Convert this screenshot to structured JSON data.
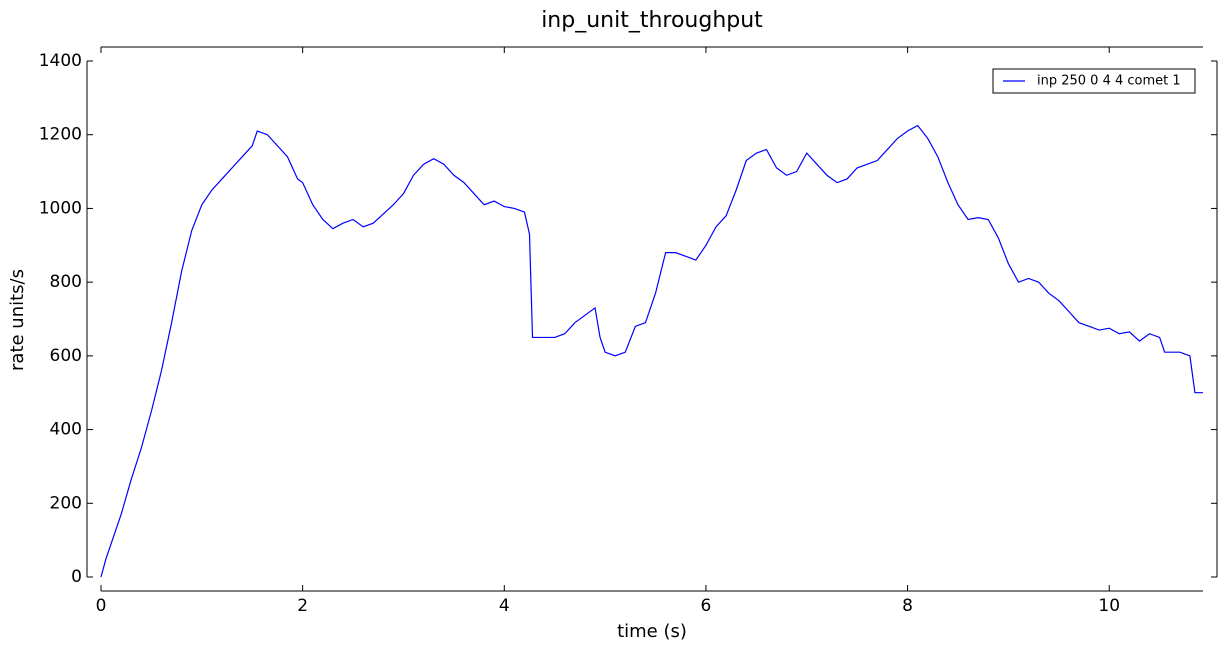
{
  "chart_data": {
    "type": "line",
    "title": "inp_unit_throughput",
    "xlabel": "time (s)",
    "ylabel": "rate units/s",
    "legend": "upper right",
    "xlim": [
      0,
      10.93
    ],
    "xticks": [
      0,
      2,
      4,
      6,
      8,
      10
    ],
    "ylim": [
      0,
      1400
    ],
    "yticks": [
      0,
      200,
      400,
      600,
      800,
      1000,
      1200,
      1400
    ],
    "x": [
      0,
      0.05,
      0.1,
      0.2,
      0.3,
      0.4,
      0.5,
      0.6,
      0.7,
      0.8,
      0.9,
      1.0,
      1.1,
      1.2,
      1.3,
      1.4,
      1.5,
      1.55,
      1.65,
      1.75,
      1.85,
      1.95,
      2.0,
      2.1,
      2.2,
      2.3,
      2.4,
      2.5,
      2.6,
      2.7,
      2.8,
      2.9,
      3.0,
      3.1,
      3.2,
      3.3,
      3.4,
      3.5,
      3.6,
      3.7,
      3.8,
      3.9,
      4.0,
      4.1,
      4.2,
      4.25,
      4.28,
      4.5,
      4.6,
      4.7,
      4.8,
      4.9,
      4.95,
      5.0,
      5.1,
      5.2,
      5.3,
      5.4,
      5.5,
      5.6,
      5.7,
      5.8,
      5.9,
      6.0,
      6.1,
      6.2,
      6.3,
      6.4,
      6.5,
      6.6,
      6.7,
      6.8,
      6.9,
      7.0,
      7.1,
      7.2,
      7.3,
      7.4,
      7.5,
      7.6,
      7.7,
      7.8,
      7.9,
      8.0,
      8.1,
      8.2,
      8.3,
      8.4,
      8.5,
      8.6,
      8.7,
      8.8,
      8.9,
      9.0,
      9.1,
      9.2,
      9.3,
      9.4,
      9.5,
      9.6,
      9.7,
      9.8,
      9.9,
      10.0,
      10.1,
      10.2,
      10.3,
      10.4,
      10.5,
      10.55,
      10.7,
      10.8,
      10.85,
      10.93
    ],
    "series": [
      {
        "name": "inp 250 0 4 4 comet 1",
        "color": "#0000ff",
        "values": [
          0,
          50,
          90,
          170,
          265,
          350,
          450,
          560,
          690,
          830,
          940,
          1010,
          1050,
          1080,
          1110,
          1140,
          1170,
          1210,
          1200,
          1170,
          1140,
          1080,
          1070,
          1010,
          970,
          945,
          960,
          970,
          950,
          960,
          985,
          1010,
          1040,
          1090,
          1120,
          1135,
          1120,
          1090,
          1070,
          1040,
          1010,
          1020,
          1005,
          1000,
          990,
          930,
          650,
          650,
          660,
          690,
          710,
          730,
          650,
          610,
          600,
          610,
          680,
          690,
          770,
          880,
          880,
          870,
          860,
          900,
          950,
          980,
          1050,
          1130,
          1150,
          1160,
          1110,
          1090,
          1100,
          1150,
          1120,
          1090,
          1070,
          1080,
          1110,
          1120,
          1130,
          1160,
          1190,
          1210,
          1225,
          1190,
          1140,
          1070,
          1010,
          970,
          975,
          970,
          920,
          850,
          800,
          810,
          800,
          770,
          750,
          720,
          690,
          680,
          670,
          675,
          660,
          665,
          640,
          660,
          650,
          610,
          610,
          600,
          500,
          500
        ]
      }
    ]
  }
}
